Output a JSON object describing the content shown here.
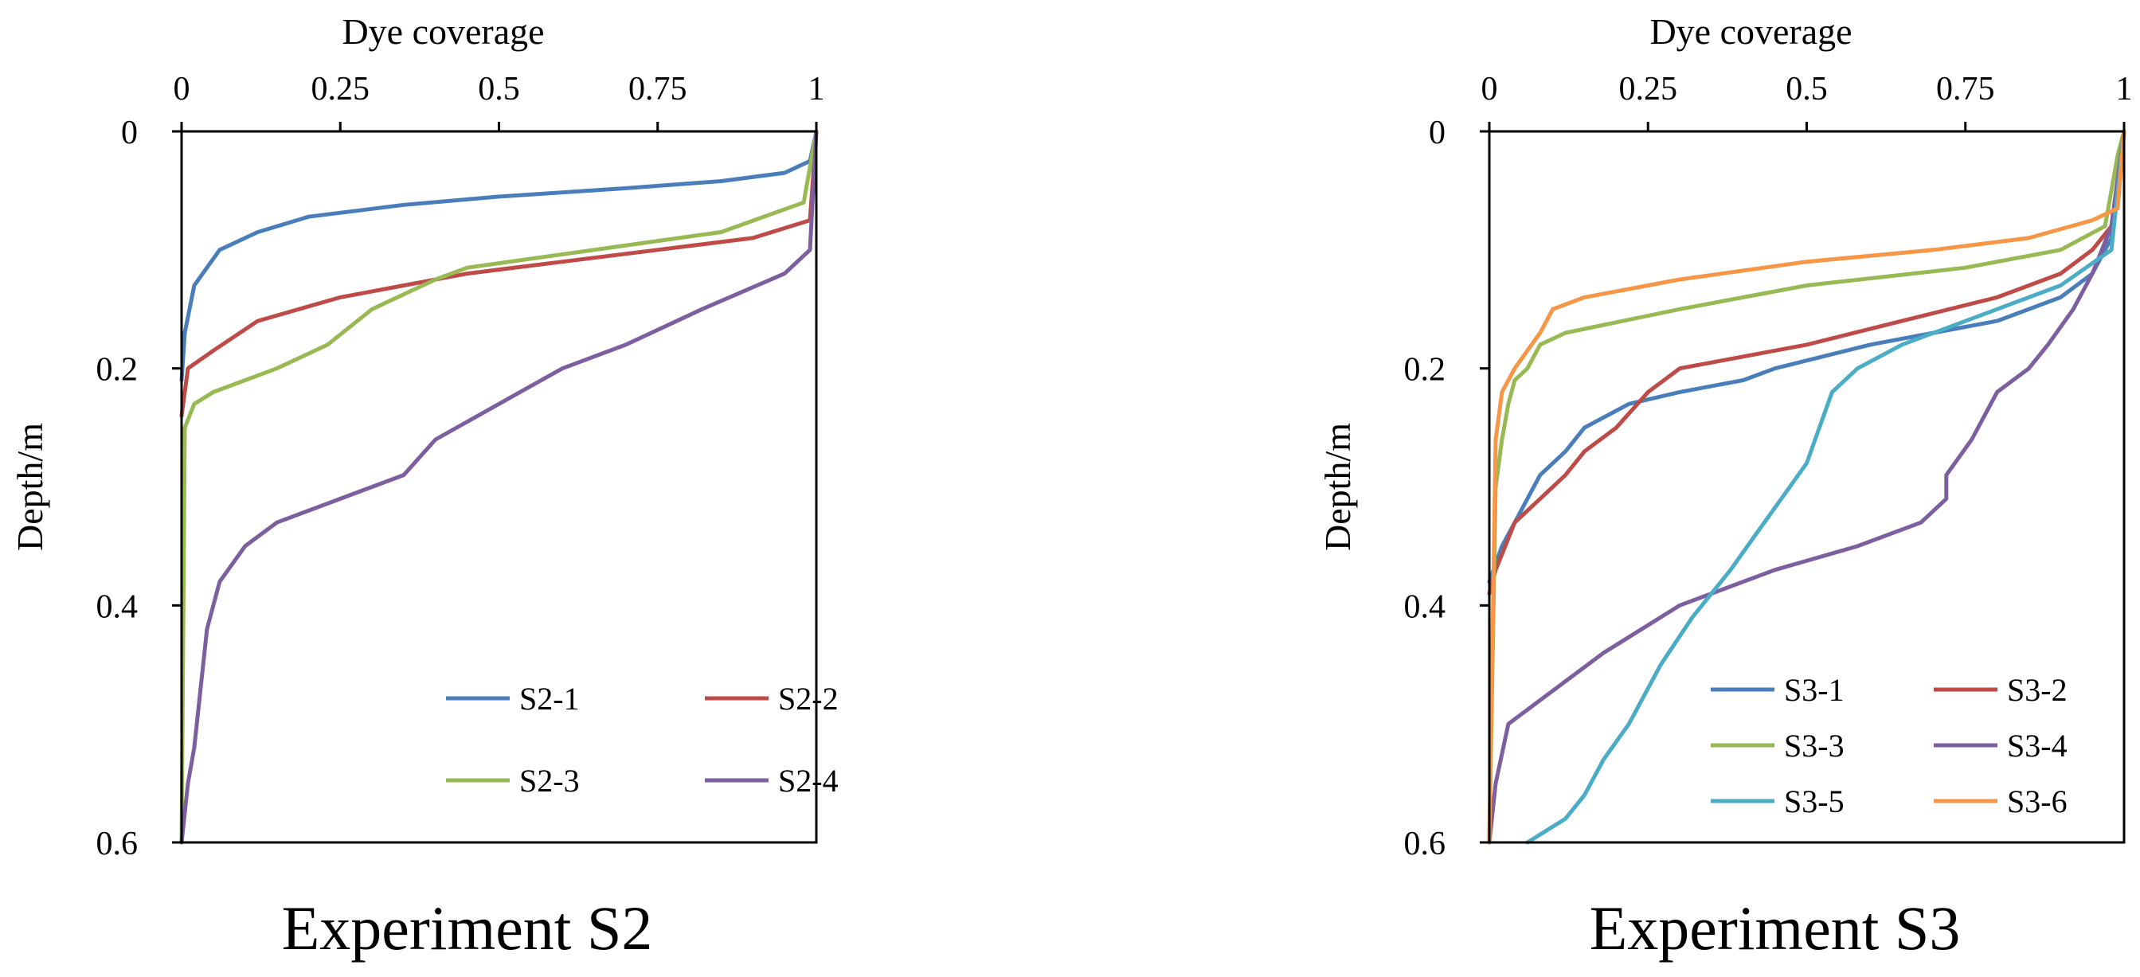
{
  "chart_data": [
    {
      "type": "line",
      "caption": "Experiment S2",
      "xlabel": "Dye coverage",
      "ylabel": "Depth/m",
      "xlim": [
        0,
        1
      ],
      "ylim": [
        0,
        0.6
      ],
      "y_inverted": true,
      "x_axis_position": "top",
      "xticks": [
        "0",
        "0.25",
        "0.5",
        "0.75",
        "1"
      ],
      "yticks": [
        "0",
        "0.2",
        "0.4",
        "0.6"
      ],
      "legend_position": "bottom-right",
      "legend_columns": 2,
      "series": [
        {
          "name": "S2-1",
          "color": "#4A7EBB",
          "x": [
            1,
            0.99,
            0.95,
            0.85,
            0.7,
            0.5,
            0.35,
            0.2,
            0.12,
            0.06,
            0.02,
            0.005,
            0
          ],
          "y": [
            0,
            0.025,
            0.035,
            0.042,
            0.048,
            0.055,
            0.062,
            0.072,
            0.085,
            0.1,
            0.13,
            0.17,
            0.21
          ]
        },
        {
          "name": "S2-2",
          "color": "#BE4B48",
          "x": [
            1,
            0.99,
            0.9,
            0.75,
            0.6,
            0.45,
            0.35,
            0.25,
            0.12,
            0.05,
            0.01,
            0
          ],
          "y": [
            0,
            0.075,
            0.09,
            0.1,
            0.11,
            0.12,
            0.13,
            0.14,
            0.16,
            0.185,
            0.2,
            0.24
          ]
        },
        {
          "name": "S2-3",
          "color": "#98B954",
          "x": [
            1,
            0.98,
            0.85,
            0.65,
            0.45,
            0.4,
            0.3,
            0.23,
            0.15,
            0.05,
            0.02,
            0.005,
            0
          ],
          "y": [
            0,
            0.06,
            0.085,
            0.1,
            0.115,
            0.125,
            0.15,
            0.18,
            0.2,
            0.22,
            0.23,
            0.25,
            0.6
          ]
        },
        {
          "name": "S2-4",
          "color": "#7D5FA0",
          "x": [
            1,
            0.99,
            0.95,
            0.82,
            0.7,
            0.6,
            0.5,
            0.4,
            0.35,
            0.25,
            0.15,
            0.1,
            0.06,
            0.04,
            0.03,
            0.02,
            0.01,
            0
          ],
          "y": [
            0,
            0.1,
            0.12,
            0.15,
            0.18,
            0.2,
            0.23,
            0.26,
            0.29,
            0.31,
            0.33,
            0.35,
            0.38,
            0.42,
            0.47,
            0.52,
            0.55,
            0.6
          ]
        }
      ]
    },
    {
      "type": "line",
      "caption": "Experiment S3",
      "xlabel": "Dye coverage",
      "ylabel": "Depth/m",
      "xlim": [
        0,
        1
      ],
      "ylim": [
        0,
        0.6
      ],
      "y_inverted": true,
      "x_axis_position": "top",
      "xticks": [
        "0",
        "0.25",
        "0.5",
        "0.75",
        "1"
      ],
      "yticks": [
        "0",
        "0.2",
        "0.4",
        "0.6"
      ],
      "legend_position": "bottom-right",
      "legend_columns": 2,
      "series": [
        {
          "name": "S3-1",
          "color": "#4A7EBB",
          "x": [
            1,
            0.98,
            0.95,
            0.9,
            0.8,
            0.7,
            0.6,
            0.45,
            0.4,
            0.3,
            0.22,
            0.15,
            0.12,
            0.08,
            0.06,
            0.04,
            0.02,
            0
          ],
          "y": [
            0,
            0.09,
            0.12,
            0.14,
            0.16,
            0.17,
            0.18,
            0.2,
            0.21,
            0.22,
            0.23,
            0.25,
            0.27,
            0.29,
            0.31,
            0.33,
            0.35,
            0.38
          ]
        },
        {
          "name": "S3-2",
          "color": "#BE4B48",
          "x": [
            1,
            0.98,
            0.95,
            0.9,
            0.8,
            0.65,
            0.5,
            0.4,
            0.3,
            0.25,
            0.2,
            0.15,
            0.12,
            0.08,
            0.04,
            0.01,
            0
          ],
          "y": [
            0,
            0.08,
            0.1,
            0.12,
            0.14,
            0.16,
            0.18,
            0.19,
            0.2,
            0.22,
            0.25,
            0.27,
            0.29,
            0.31,
            0.33,
            0.37,
            0.39
          ]
        },
        {
          "name": "S3-3",
          "color": "#98B954",
          "x": [
            1,
            0.99,
            0.97,
            0.9,
            0.75,
            0.5,
            0.3,
            0.12,
            0.08,
            0.06,
            0.04,
            0.03,
            0.02,
            0.01,
            0
          ],
          "y": [
            0,
            0.02,
            0.08,
            0.1,
            0.115,
            0.13,
            0.15,
            0.17,
            0.18,
            0.2,
            0.21,
            0.23,
            0.26,
            0.3,
            0.6
          ]
        },
        {
          "name": "S3-4",
          "color": "#7D5FA0",
          "x": [
            1,
            0.98,
            0.95,
            0.92,
            0.88,
            0.85,
            0.8,
            0.76,
            0.72,
            0.72,
            0.68,
            0.58,
            0.45,
            0.3,
            0.18,
            0.08,
            0.03,
            0.01,
            0
          ],
          "y": [
            0,
            0.08,
            0.12,
            0.15,
            0.18,
            0.2,
            0.22,
            0.26,
            0.29,
            0.31,
            0.33,
            0.35,
            0.37,
            0.4,
            0.44,
            0.48,
            0.5,
            0.55,
            0.6
          ]
        },
        {
          "name": "S3-5",
          "color": "#4BACC6",
          "x": [
            1,
            0.98,
            0.9,
            0.8,
            0.65,
            0.58,
            0.54,
            0.52,
            0.5,
            0.46,
            0.42,
            0.38,
            0.32,
            0.27,
            0.22,
            0.18,
            0.15,
            0.12,
            0.06
          ],
          "y": [
            0,
            0.1,
            0.13,
            0.15,
            0.18,
            0.2,
            0.22,
            0.25,
            0.28,
            0.31,
            0.34,
            0.37,
            0.41,
            0.45,
            0.5,
            0.53,
            0.56,
            0.58,
            0.6
          ]
        },
        {
          "name": "S3-6",
          "color": "#F79646",
          "x": [
            1,
            0.99,
            0.95,
            0.85,
            0.7,
            0.5,
            0.3,
            0.15,
            0.1,
            0.08,
            0.06,
            0.04,
            0.02,
            0.01,
            0
          ],
          "y": [
            0,
            0.065,
            0.075,
            0.09,
            0.1,
            0.11,
            0.125,
            0.14,
            0.15,
            0.17,
            0.185,
            0.2,
            0.22,
            0.26,
            0.6
          ]
        }
      ]
    }
  ]
}
